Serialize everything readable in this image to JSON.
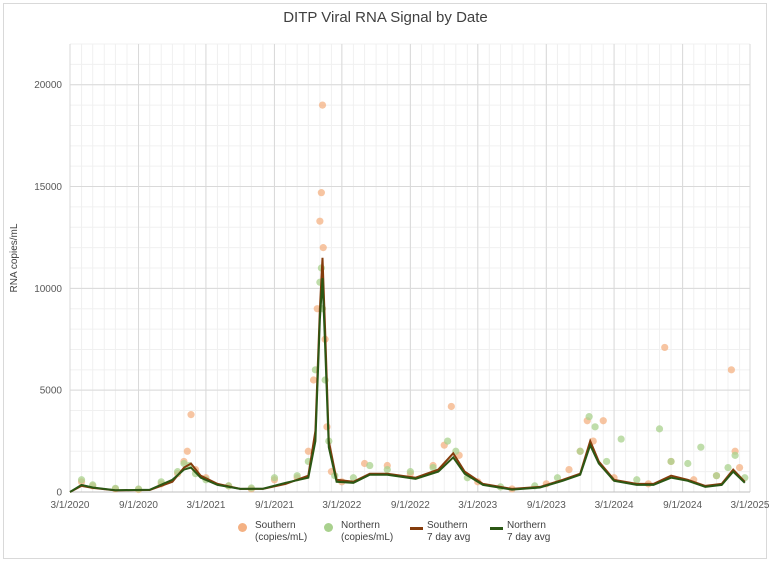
{
  "chart_data": {
    "type": "scatter",
    "title": "DITP Viral RNA Signal by Date",
    "ylabel": "RNA copies/mL",
    "xlabel": "",
    "ylim": [
      0,
      22000
    ],
    "yticks": [
      "0",
      "5000",
      "10000",
      "15000",
      "20000"
    ],
    "ytick_values": [
      0,
      5000,
      10000,
      15000,
      20000
    ],
    "xlim": [
      "2020-03-01",
      "2025-03-01"
    ],
    "xticks": [
      "3/1/2020",
      "9/1/2020",
      "3/1/2021",
      "9/1/2021",
      "3/1/2022",
      "9/1/2022",
      "3/1/2023",
      "9/1/2023",
      "3/1/2024",
      "9/1/2024",
      "3/1/2025"
    ],
    "xtick_dates": [
      "2020-03-01",
      "2020-09-01",
      "2021-03-01",
      "2021-09-01",
      "2022-03-01",
      "2022-09-01",
      "2023-03-01",
      "2023-09-01",
      "2024-03-01",
      "2024-09-01",
      "2025-03-01"
    ],
    "grid": true,
    "legend_position": "bottom",
    "series": [
      {
        "name": "Southern (copies/mL)",
        "label_lines": [
          "Southern",
          "(copies/mL)"
        ],
        "kind": "points",
        "color": "#f4b183",
        "points": [
          [
            "2020-04-01",
            500
          ],
          [
            "2020-05-01",
            300
          ],
          [
            "2020-07-01",
            150
          ],
          [
            "2020-09-01",
            120
          ],
          [
            "2020-11-01",
            400
          ],
          [
            "2020-12-15",
            900
          ],
          [
            "2021-01-01",
            1500
          ],
          [
            "2021-01-10",
            2000
          ],
          [
            "2021-01-20",
            3800
          ],
          [
            "2021-02-01",
            1100
          ],
          [
            "2021-03-01",
            700
          ],
          [
            "2021-05-01",
            300
          ],
          [
            "2021-07-01",
            150
          ],
          [
            "2021-09-01",
            600
          ],
          [
            "2021-11-01",
            700
          ],
          [
            "2021-12-01",
            2000
          ],
          [
            "2021-12-15",
            5500
          ],
          [
            "2021-12-25",
            9000
          ],
          [
            "2022-01-01",
            13300
          ],
          [
            "2022-01-05",
            14700
          ],
          [
            "2022-01-08",
            19000
          ],
          [
            "2022-01-10",
            12000
          ],
          [
            "2022-01-15",
            7500
          ],
          [
            "2022-01-20",
            3200
          ],
          [
            "2022-02-01",
            1000
          ],
          [
            "2022-03-01",
            500
          ],
          [
            "2022-05-01",
            1400
          ],
          [
            "2022-07-01",
            1300
          ],
          [
            "2022-09-01",
            900
          ],
          [
            "2022-11-01",
            1300
          ],
          [
            "2022-12-01",
            2300
          ],
          [
            "2022-12-20",
            4200
          ],
          [
            "2023-01-10",
            1800
          ],
          [
            "2023-03-01",
            500
          ],
          [
            "2023-06-01",
            150
          ],
          [
            "2023-09-01",
            400
          ],
          [
            "2023-11-01",
            1100
          ],
          [
            "2023-12-01",
            2000
          ],
          [
            "2023-12-20",
            3500
          ],
          [
            "2024-01-05",
            2500
          ],
          [
            "2024-02-01",
            3500
          ],
          [
            "2024-03-01",
            700
          ],
          [
            "2024-06-01",
            400
          ],
          [
            "2024-07-15",
            7100
          ],
          [
            "2024-08-01",
            1500
          ],
          [
            "2024-10-01",
            600
          ],
          [
            "2024-12-01",
            800
          ],
          [
            "2025-01-10",
            6000
          ],
          [
            "2025-01-20",
            2000
          ],
          [
            "2025-02-01",
            1200
          ]
        ]
      },
      {
        "name": "Northern (copies/mL)",
        "label_lines": [
          "Northern",
          "(copies/mL)"
        ],
        "kind": "points",
        "color": "#a9d18e",
        "points": [
          [
            "2020-04-01",
            600
          ],
          [
            "2020-05-01",
            350
          ],
          [
            "2020-07-01",
            180
          ],
          [
            "2020-09-01",
            150
          ],
          [
            "2020-11-01",
            500
          ],
          [
            "2020-12-15",
            1000
          ],
          [
            "2021-01-01",
            1400
          ],
          [
            "2021-01-15",
            1300
          ],
          [
            "2021-02-01",
            900
          ],
          [
            "2021-03-01",
            600
          ],
          [
            "2021-05-01",
            300
          ],
          [
            "2021-07-01",
            200
          ],
          [
            "2021-09-01",
            700
          ],
          [
            "2021-11-01",
            800
          ],
          [
            "2021-12-01",
            1500
          ],
          [
            "2021-12-20",
            6000
          ],
          [
            "2022-01-01",
            10300
          ],
          [
            "2022-01-05",
            11000
          ],
          [
            "2022-01-08",
            9000
          ],
          [
            "2022-01-15",
            5500
          ],
          [
            "2022-01-25",
            2500
          ],
          [
            "2022-02-10",
            800
          ],
          [
            "2022-04-01",
            700
          ],
          [
            "2022-05-15",
            1300
          ],
          [
            "2022-07-01",
            1100
          ],
          [
            "2022-09-01",
            1000
          ],
          [
            "2022-11-01",
            1200
          ],
          [
            "2022-12-10",
            2500
          ],
          [
            "2023-01-01",
            2000
          ],
          [
            "2023-02-01",
            700
          ],
          [
            "2023-05-01",
            250
          ],
          [
            "2023-08-01",
            300
          ],
          [
            "2023-10-01",
            700
          ],
          [
            "2023-12-01",
            2000
          ],
          [
            "2023-12-25",
            3700
          ],
          [
            "2024-01-10",
            3200
          ],
          [
            "2024-02-10",
            1500
          ],
          [
            "2024-03-20",
            2600
          ],
          [
            "2024-05-01",
            600
          ],
          [
            "2024-07-01",
            3100
          ],
          [
            "2024-08-01",
            1500
          ],
          [
            "2024-09-15",
            1400
          ],
          [
            "2024-10-20",
            2200
          ],
          [
            "2024-12-01",
            800
          ],
          [
            "2025-01-01",
            1200
          ],
          [
            "2025-01-20",
            1800
          ],
          [
            "2025-02-15",
            700
          ]
        ]
      },
      {
        "name": "Southern 7 day avg",
        "label_lines": [
          "Southern",
          "7 day avg"
        ],
        "kind": "line",
        "color": "#843c0c",
        "points": [
          [
            "2020-03-01",
            0
          ],
          [
            "2020-04-01",
            300
          ],
          [
            "2020-05-01",
            200
          ],
          [
            "2020-07-01",
            80
          ],
          [
            "2020-10-01",
            100
          ],
          [
            "2020-12-01",
            500
          ],
          [
            "2021-01-01",
            1200
          ],
          [
            "2021-01-20",
            1400
          ],
          [
            "2021-02-15",
            800
          ],
          [
            "2021-04-01",
            400
          ],
          [
            "2021-06-01",
            150
          ],
          [
            "2021-08-01",
            150
          ],
          [
            "2021-10-01",
            400
          ],
          [
            "2021-12-01",
            800
          ],
          [
            "2021-12-20",
            3000
          ],
          [
            "2022-01-01",
            9000
          ],
          [
            "2022-01-08",
            11500
          ],
          [
            "2022-01-15",
            8000
          ],
          [
            "2022-01-25",
            2500
          ],
          [
            "2022-02-15",
            600
          ],
          [
            "2022-04-01",
            500
          ],
          [
            "2022-05-15",
            900
          ],
          [
            "2022-07-01",
            900
          ],
          [
            "2022-09-15",
            700
          ],
          [
            "2022-11-15",
            1100
          ],
          [
            "2022-12-25",
            1900
          ],
          [
            "2023-01-25",
            1000
          ],
          [
            "2023-03-15",
            400
          ],
          [
            "2023-06-01",
            150
          ],
          [
            "2023-08-15",
            250
          ],
          [
            "2023-10-15",
            600
          ],
          [
            "2023-12-01",
            900
          ],
          [
            "2023-12-28",
            2500
          ],
          [
            "2024-01-20",
            1500
          ],
          [
            "2024-03-01",
            600
          ],
          [
            "2024-05-01",
            400
          ],
          [
            "2024-06-15",
            400
          ],
          [
            "2024-08-01",
            800
          ],
          [
            "2024-09-15",
            600
          ],
          [
            "2024-11-01",
            300
          ],
          [
            "2024-12-15",
            400
          ],
          [
            "2025-01-15",
            1100
          ],
          [
            "2025-02-15",
            500
          ]
        ]
      },
      {
        "name": "Northern 7 day avg",
        "label_lines": [
          "Northern",
          "7 day avg"
        ],
        "kind": "line",
        "color": "#2b5714",
        "points": [
          [
            "2020-03-01",
            0
          ],
          [
            "2020-04-01",
            350
          ],
          [
            "2020-05-01",
            220
          ],
          [
            "2020-07-01",
            90
          ],
          [
            "2020-10-01",
            110
          ],
          [
            "2020-12-01",
            600
          ],
          [
            "2021-01-01",
            1100
          ],
          [
            "2021-01-20",
            1200
          ],
          [
            "2021-02-15",
            700
          ],
          [
            "2021-04-01",
            350
          ],
          [
            "2021-06-01",
            150
          ],
          [
            "2021-08-01",
            160
          ],
          [
            "2021-10-01",
            450
          ],
          [
            "2021-12-01",
            700
          ],
          [
            "2021-12-20",
            2500
          ],
          [
            "2022-01-01",
            8500
          ],
          [
            "2022-01-08",
            10500
          ],
          [
            "2022-01-15",
            7200
          ],
          [
            "2022-01-25",
            2200
          ],
          [
            "2022-02-15",
            500
          ],
          [
            "2022-04-01",
            450
          ],
          [
            "2022-05-15",
            850
          ],
          [
            "2022-07-01",
            850
          ],
          [
            "2022-09-15",
            650
          ],
          [
            "2022-11-15",
            1000
          ],
          [
            "2022-12-25",
            1700
          ],
          [
            "2023-01-25",
            900
          ],
          [
            "2023-03-15",
            350
          ],
          [
            "2023-06-01",
            120
          ],
          [
            "2023-08-15",
            220
          ],
          [
            "2023-10-15",
            550
          ],
          [
            "2023-12-01",
            850
          ],
          [
            "2023-12-28",
            2300
          ],
          [
            "2024-01-20",
            1400
          ],
          [
            "2024-03-01",
            550
          ],
          [
            "2024-05-01",
            350
          ],
          [
            "2024-06-15",
            350
          ],
          [
            "2024-08-01",
            700
          ],
          [
            "2024-09-15",
            550
          ],
          [
            "2024-11-01",
            250
          ],
          [
            "2024-12-15",
            350
          ],
          [
            "2025-01-15",
            1000
          ],
          [
            "2025-02-15",
            450
          ]
        ]
      }
    ]
  }
}
